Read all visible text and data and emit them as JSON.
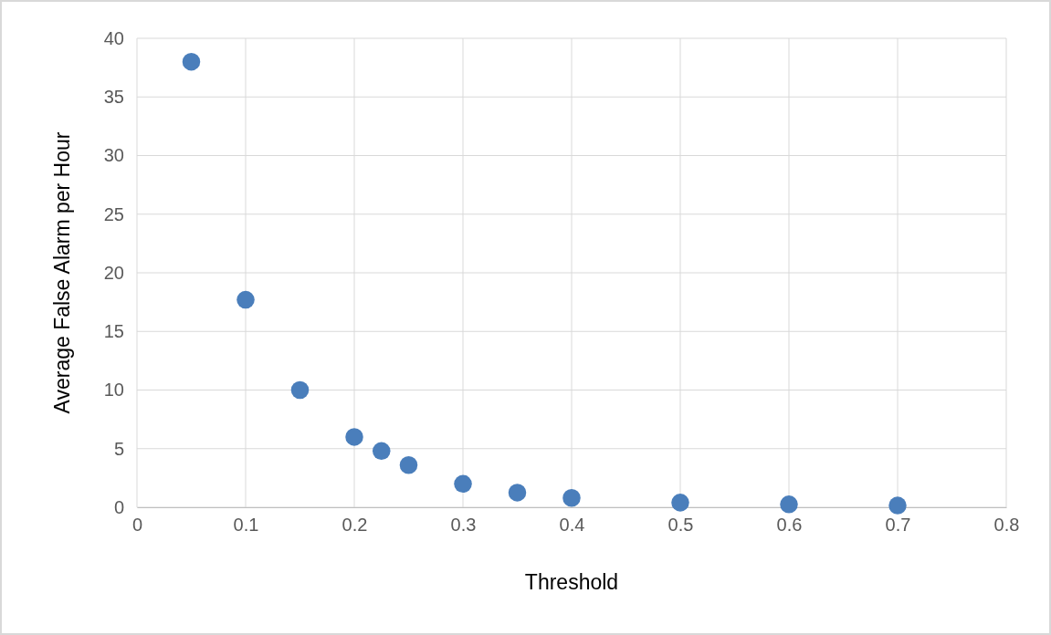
{
  "chart_data": {
    "type": "scatter",
    "xlabel": "Threshold",
    "ylabel": "Average False Alarm per Hour",
    "x": [
      0.05,
      0.1,
      0.15,
      0.2,
      0.225,
      0.25,
      0.3,
      0.35,
      0.4,
      0.5,
      0.6,
      0.7
    ],
    "series": [
      {
        "color": "#4a7ebb",
        "values": [
          38.0,
          17.7,
          10.0,
          6.0,
          4.8,
          3.6,
          2.0,
          1.25,
          0.8,
          0.4,
          0.25,
          0.15
        ]
      }
    ],
    "xlim": [
      0,
      0.8
    ],
    "xticks": [
      0,
      0.1,
      0.2,
      0.3,
      0.4,
      0.5,
      0.6,
      0.7,
      0.8
    ],
    "ylim": [
      0,
      40
    ],
    "yticks": [
      0,
      5,
      10,
      15,
      20,
      25,
      30,
      35,
      40
    ],
    "grid": true,
    "marker": "circle"
  }
}
